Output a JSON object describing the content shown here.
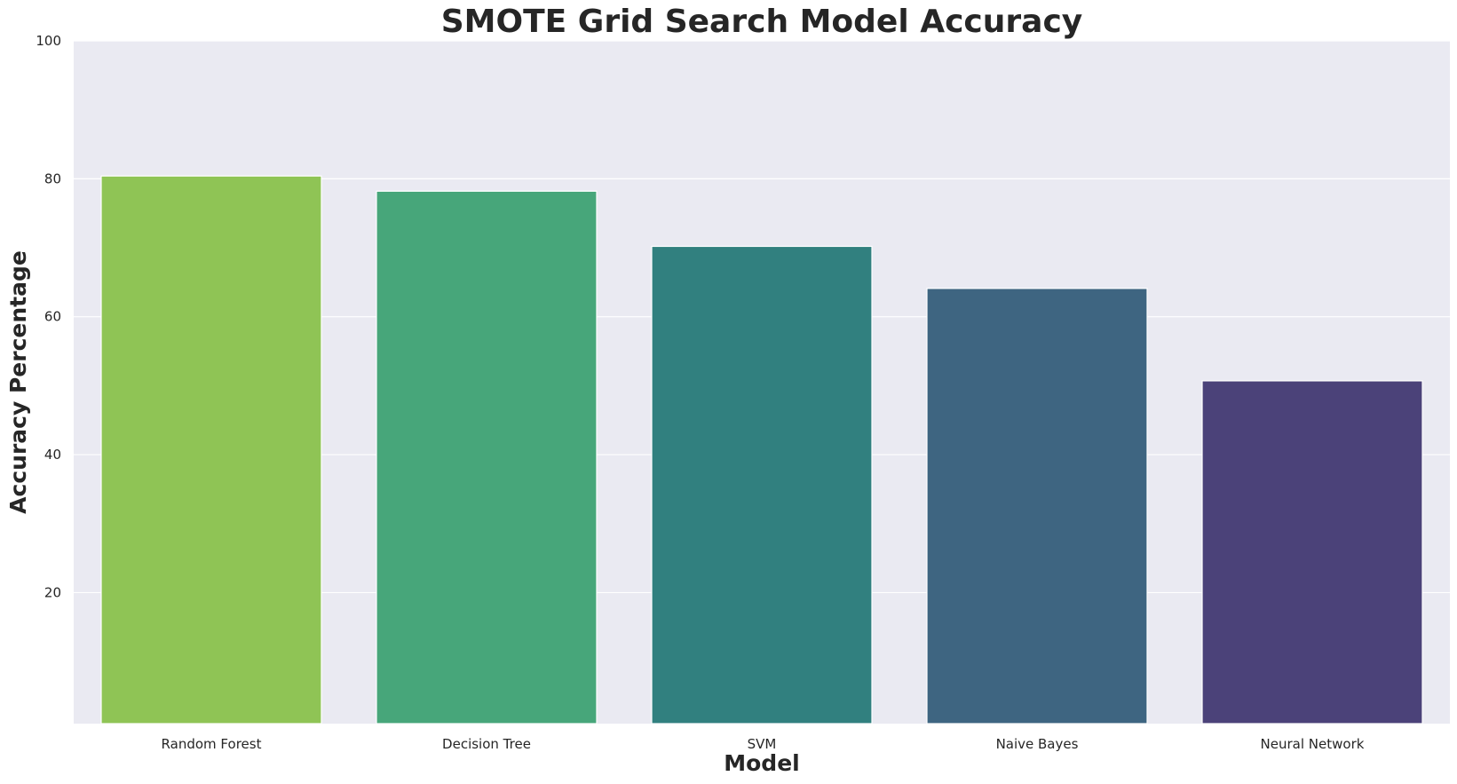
{
  "chart_data": {
    "type": "bar",
    "title": "SMOTE Grid Search Model Accuracy",
    "xlabel": "Model",
    "ylabel": "Accuracy Percentage",
    "categories": [
      "Random Forest",
      "Decision Tree",
      "SVM",
      "Naive Bayes",
      "Neural Network"
    ],
    "values": [
      80.4,
      78.2,
      70.2,
      64.1,
      50.7
    ],
    "ylim": [
      1,
      100
    ],
    "yticks": [
      "20",
      "40",
      "60",
      "80",
      "100"
    ],
    "grid": true,
    "colors": [
      "#8fc455",
      "#47a67a",
      "#31807f",
      "#3e6581",
      "#4b4279"
    ],
    "background": "#eaeaf2"
  }
}
